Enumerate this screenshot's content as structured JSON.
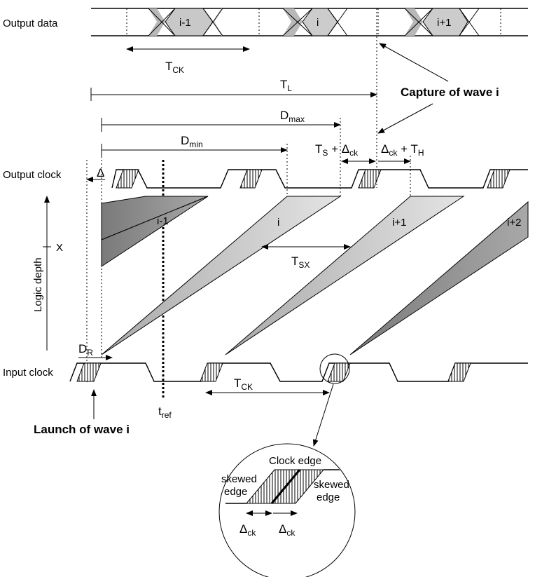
{
  "labels": {
    "output_data": "Output data",
    "output_clock": "Output clock",
    "input_clock": "Input clock",
    "logic_depth": "Logic depth",
    "x_marker": "X",
    "capture": "Capture of wave i",
    "launch": "Launch of wave i",
    "clock_edge": "Clock edge",
    "skewed_edge_1": "skewed",
    "skewed_edge_1b": "edge",
    "skewed_edge_2": "skewed",
    "skewed_edge_2b": "edge"
  },
  "waves": {
    "data_im1": "i-1",
    "data_i": "i",
    "data_ip1": "i+1",
    "tri_im1": "i-1",
    "tri_i": "i",
    "tri_ip1": "i+1",
    "tri_ip2": "i+2"
  },
  "timing": {
    "tck_top": {
      "main": "T",
      "sub": "CK"
    },
    "tl": {
      "main": "T",
      "sub": "L"
    },
    "dmax": {
      "main": "D",
      "sub": "max"
    },
    "dmin": {
      "main": "D",
      "sub": "min"
    },
    "ts_dck": {
      "a": "T",
      "a_sub": "S",
      "op": " + ",
      "b": "Δ",
      "b_sub": "ck"
    },
    "dck_th": {
      "a": "Δ",
      "a_sub": "ck",
      "op": " + ",
      "b": "T",
      "b_sub": "H"
    },
    "delta": "Δ",
    "tsx": {
      "main": "T",
      "sub": "SX"
    },
    "dr": {
      "main": "D",
      "sub": "R"
    },
    "tck_bottom": {
      "main": "T",
      "sub": "CK"
    },
    "tref": {
      "main": "t",
      "sub": "ref"
    },
    "dck_left": {
      "main": "Δ",
      "sub": "ck"
    },
    "dck_right": {
      "main": "Δ",
      "sub": "ck"
    }
  },
  "colors": {
    "light_gray": "#cfcfcf",
    "dark_gray": "#8a8a8a",
    "line": "#000000"
  }
}
